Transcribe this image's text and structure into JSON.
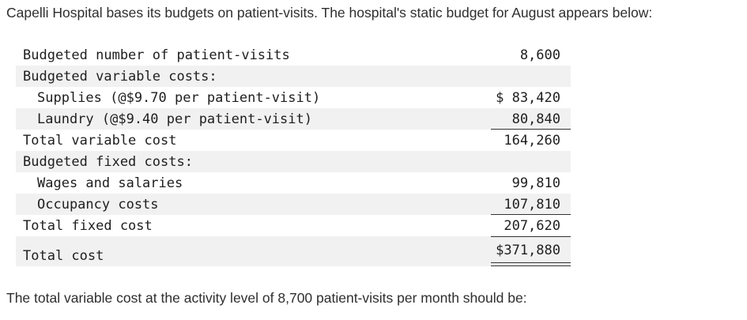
{
  "intro": "Capelli Hospital bases its budgets on patient-visits. The hospital's static budget for August appears below:",
  "budget": {
    "rows": [
      {
        "label": "Budgeted number of patient-visits",
        "amount": "8,600"
      },
      {
        "label": "Budgeted variable costs:",
        "amount": ""
      },
      {
        "label": "Supplies (@$9.70 per patient-visit)",
        "amount": "$ 83,420"
      },
      {
        "label": "Laundry (@$9.40 per patient-visit)",
        "amount": "80,840"
      },
      {
        "label": "Total variable cost",
        "amount": "164,260"
      },
      {
        "label": "Budgeted fixed costs:",
        "amount": ""
      },
      {
        "label": "Wages and salaries",
        "amount": "99,810"
      },
      {
        "label": "Occupancy costs",
        "amount": "107,810"
      },
      {
        "label": "Total fixed cost",
        "amount": "207,620"
      },
      {
        "label": "Total cost",
        "amount": "$371,880"
      }
    ]
  },
  "question": "The total variable cost at the activity level of 8,700 patient-visits per month should be:"
}
